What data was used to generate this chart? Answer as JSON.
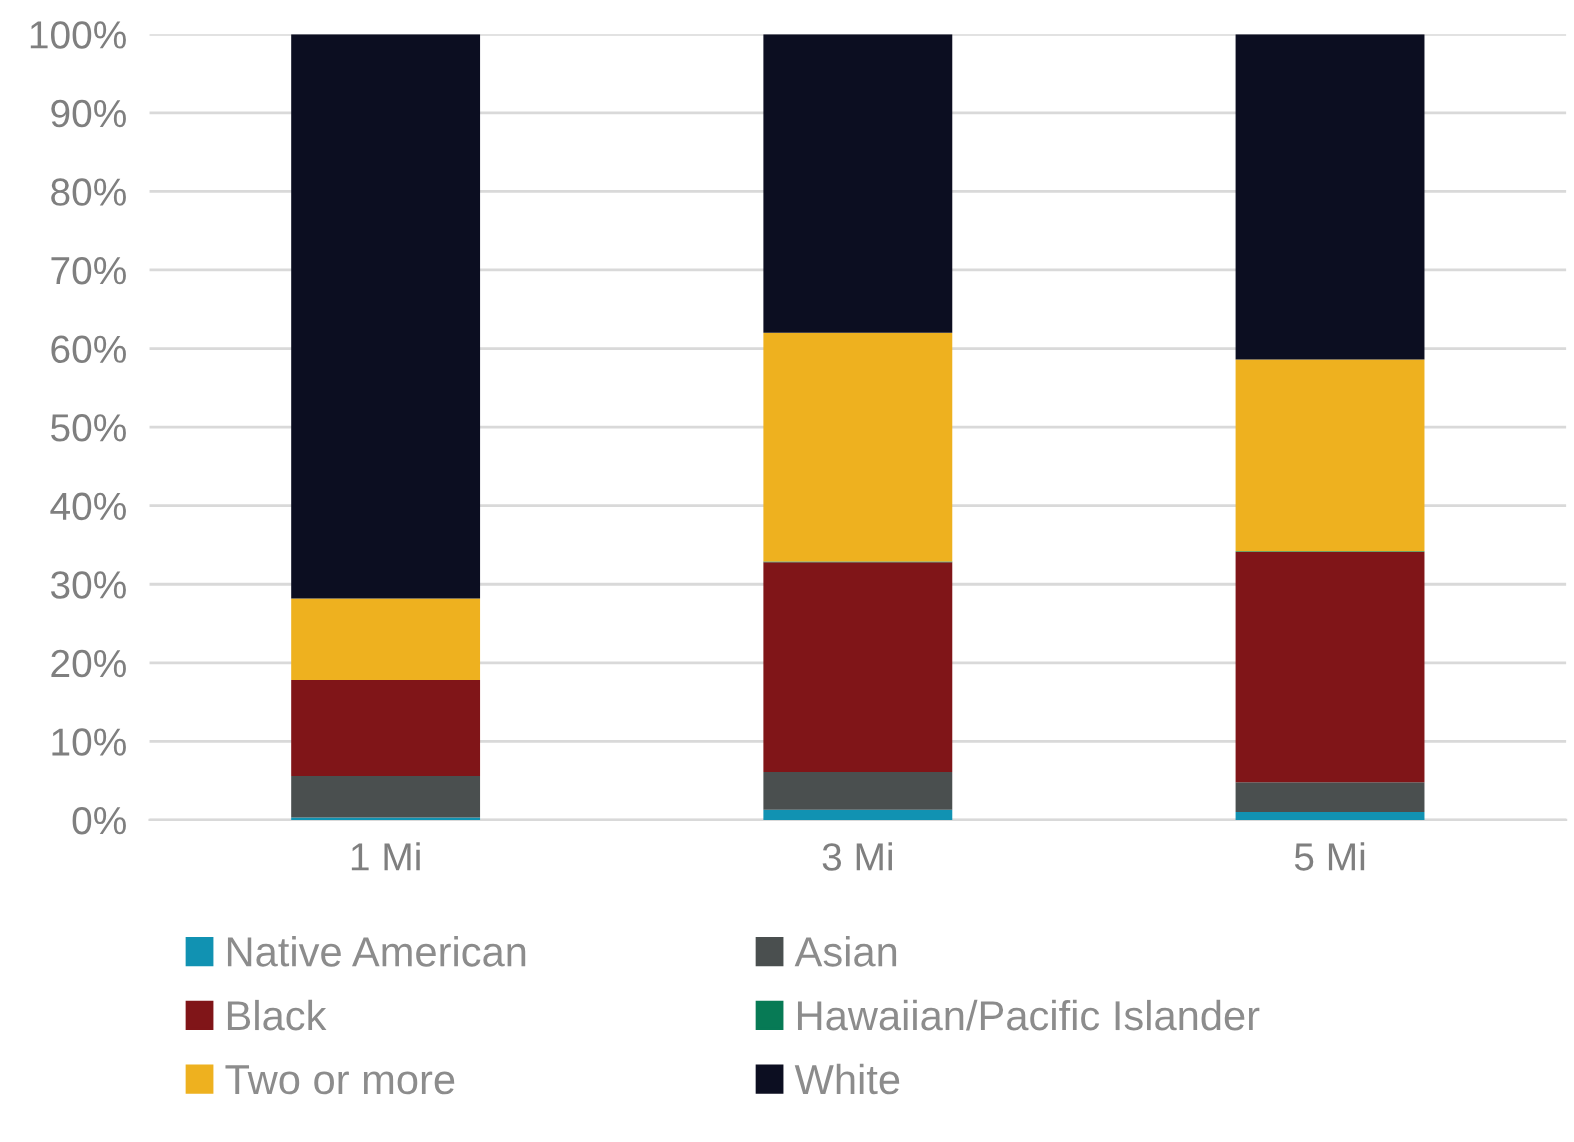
{
  "chart_data": {
    "type": "bar",
    "stacked": true,
    "categories": [
      "1 Mi",
      "3 Mi",
      "5 Mi"
    ],
    "series": [
      {
        "name": "Native American",
        "color": "#1192b2",
        "values": [
          0.3,
          1.3,
          1.0
        ]
      },
      {
        "name": "Asian",
        "color": "#4a4f4f",
        "values": [
          5.3,
          4.8,
          3.8
        ]
      },
      {
        "name": "Black",
        "color": "#801518",
        "values": [
          12.2,
          26.7,
          29.3
        ]
      },
      {
        "name": "Hawaiian/Pacific Islander",
        "color": "#077a55",
        "values": [
          0.0,
          0.1,
          0.1
        ]
      },
      {
        "name": "Two or more",
        "color": "#eeb11f",
        "values": [
          10.4,
          29.1,
          24.4
        ]
      },
      {
        "name": "White",
        "color": "#0c0e21",
        "values": [
          71.8,
          38.0,
          41.4
        ]
      }
    ],
    "ylim": [
      0,
      100
    ],
    "yticks": [
      {
        "value": 0,
        "label": "0%"
      },
      {
        "value": 10,
        "label": "10%"
      },
      {
        "value": 20,
        "label": "20%"
      },
      {
        "value": 30,
        "label": "30%"
      },
      {
        "value": 40,
        "label": "40%"
      },
      {
        "value": 50,
        "label": "50%"
      },
      {
        "value": 60,
        "label": "60%"
      },
      {
        "value": 70,
        "label": "70%"
      },
      {
        "value": 80,
        "label": "80%"
      },
      {
        "value": 90,
        "label": "90%"
      },
      {
        "value": 100,
        "label": "100%"
      }
    ],
    "grid": "y",
    "legend": "bottom"
  }
}
